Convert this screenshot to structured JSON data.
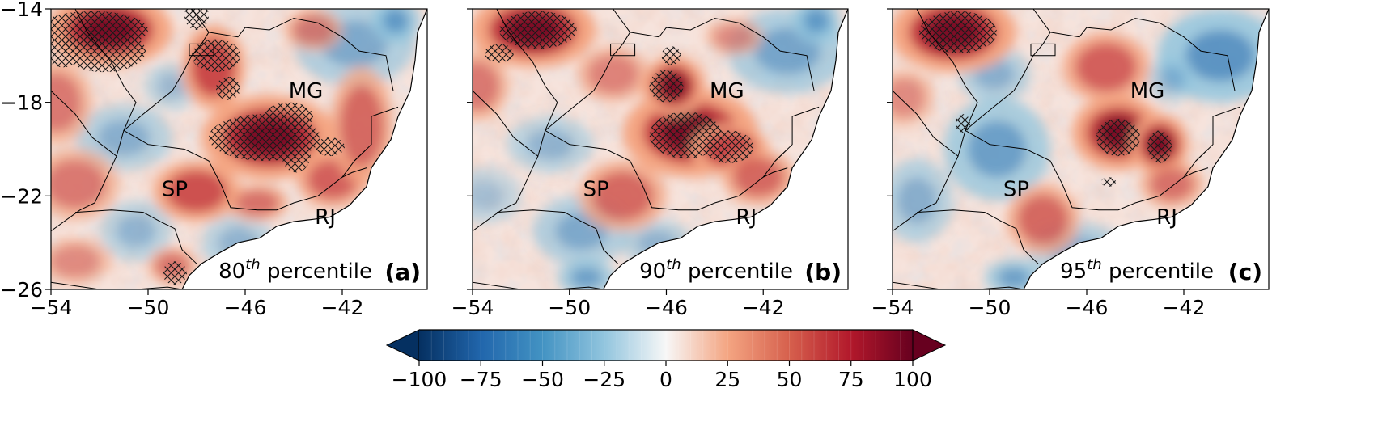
{
  "figure": {
    "panels": [
      {
        "id": "a",
        "panel_label": "(a)",
        "percentile_number": "80",
        "percentile_suffix": "th",
        "percentile_word": " percentile",
        "hatch": [
          [
            -52.3,
            -14.9,
            2.3,
            0.8
          ],
          [
            -51.8,
            -15.8,
            1.7,
            0.9
          ],
          [
            -53.5,
            -15.9,
            0.7,
            0.6
          ],
          [
            -48.0,
            -14.3,
            0.5,
            0.6
          ],
          [
            -47.2,
            -16.0,
            1.0,
            0.7
          ],
          [
            -46.7,
            -17.4,
            0.5,
            0.5
          ],
          [
            -45.2,
            -19.5,
            2.3,
            1.0
          ],
          [
            -44.2,
            -18.6,
            1.0,
            0.6
          ],
          [
            -43.9,
            -20.2,
            0.6,
            0.8
          ],
          [
            -42.5,
            -19.9,
            0.6,
            0.4
          ],
          [
            -48.9,
            -25.3,
            0.5,
            0.5
          ]
        ],
        "hot": [
          [
            -51.6,
            -14.9,
            2.6,
            1.6,
            0.95
          ],
          [
            -45.0,
            -19.5,
            2.8,
            1.8,
            0.95
          ],
          [
            -47.3,
            -16.5,
            1.3,
            1.8,
            0.75
          ],
          [
            -48.0,
            -21.8,
            1.8,
            1.3,
            0.7
          ],
          [
            -42.4,
            -21.3,
            1.5,
            1.2,
            0.6
          ],
          [
            -41.2,
            -19.0,
            1.3,
            2.5,
            0.55
          ],
          [
            -53.8,
            -18.0,
            1.5,
            1.8,
            0.45
          ],
          [
            -53.0,
            -21.5,
            1.8,
            1.5,
            0.45
          ],
          [
            -45.5,
            -22.3,
            1.3,
            0.8,
            0.5
          ],
          [
            -49.0,
            -25.0,
            1.0,
            0.8,
            0.5
          ],
          [
            -53.0,
            -24.8,
            1.5,
            1.0,
            0.35
          ],
          [
            -43.2,
            -14.9,
            1.2,
            0.9,
            0.45
          ]
        ],
        "cold": [
          [
            -41.5,
            -15.5,
            2.5,
            1.8,
            0.45
          ],
          [
            -39.8,
            -14.5,
            1.0,
            1.0,
            0.6
          ],
          [
            -51.0,
            -19.5,
            2.0,
            1.4,
            0.4
          ],
          [
            -50.5,
            -23.5,
            1.5,
            1.3,
            0.35
          ],
          [
            -46.3,
            -24.0,
            1.5,
            1.2,
            0.35
          ],
          [
            -49.0,
            -17.3,
            1.2,
            1.0,
            0.3
          ]
        ]
      },
      {
        "id": "b",
        "panel_label": "(b)",
        "percentile_number": "90",
        "percentile_suffix": "th",
        "percentile_word": " percentile",
        "hatch": [
          [
            -51.3,
            -14.9,
            1.6,
            0.8
          ],
          [
            -52.9,
            -15.9,
            0.6,
            0.4
          ],
          [
            -45.2,
            -19.4,
            1.5,
            1.0
          ],
          [
            -46.0,
            -17.3,
            0.7,
            0.7
          ],
          [
            -43.4,
            -19.9,
            1.0,
            0.7
          ],
          [
            -45.8,
            -16.0,
            0.4,
            0.4
          ]
        ],
        "hot": [
          [
            -51.5,
            -14.9,
            2.6,
            1.6,
            0.95
          ],
          [
            -45.0,
            -19.3,
            2.8,
            1.9,
            0.9
          ],
          [
            -45.7,
            -17.3,
            1.3,
            1.3,
            0.85
          ],
          [
            -43.4,
            -20.0,
            1.6,
            1.1,
            0.8
          ],
          [
            -47.8,
            -22.0,
            1.8,
            1.5,
            0.55
          ],
          [
            -42.2,
            -21.2,
            1.5,
            1.2,
            0.55
          ],
          [
            -53.8,
            -17.3,
            1.3,
            1.5,
            0.45
          ],
          [
            -48.2,
            -16.8,
            1.5,
            1.2,
            0.4
          ],
          [
            -43.2,
            -15.2,
            1.2,
            0.8,
            0.35
          ]
        ],
        "cold": [
          [
            -41.0,
            -15.8,
            2.5,
            1.8,
            0.5
          ],
          [
            -39.8,
            -14.5,
            1.0,
            1.0,
            0.6
          ],
          [
            -49.5,
            -23.5,
            2.0,
            1.5,
            0.45
          ],
          [
            -50.8,
            -19.8,
            1.8,
            1.2,
            0.35
          ],
          [
            -49.3,
            -25.5,
            1.2,
            0.8,
            0.55
          ],
          [
            -46.4,
            -24.0,
            1.5,
            1.0,
            0.35
          ],
          [
            -53.5,
            -22.0,
            1.5,
            1.2,
            0.25
          ]
        ]
      },
      {
        "id": "c",
        "panel_label": "(c)",
        "percentile_number": "95",
        "percentile_suffix": "th",
        "percentile_word": " percentile",
        "hatch": [
          [
            -51.3,
            -15.0,
            1.6,
            0.9
          ],
          [
            -44.7,
            -19.5,
            0.9,
            0.8
          ],
          [
            -43.0,
            -19.9,
            0.5,
            0.7
          ],
          [
            -51.1,
            -18.9,
            0.3,
            0.4
          ],
          [
            -45.1,
            -21.4,
            0.3,
            0.2
          ]
        ],
        "hot": [
          [
            -51.5,
            -15.0,
            2.6,
            1.7,
            0.95
          ],
          [
            -44.7,
            -19.3,
            1.9,
            1.6,
            0.85
          ],
          [
            -43.0,
            -19.8,
            1.2,
            1.3,
            0.9
          ],
          [
            -45.2,
            -16.5,
            1.8,
            1.5,
            0.6
          ],
          [
            -47.8,
            -23.0,
            1.5,
            1.5,
            0.55
          ],
          [
            -42.5,
            -21.5,
            1.3,
            1.0,
            0.5
          ],
          [
            -53.5,
            -17.8,
            1.2,
            1.2,
            0.35
          ]
        ],
        "cold": [
          [
            -40.5,
            -16.0,
            2.6,
            2.0,
            0.65
          ],
          [
            -49.7,
            -20.0,
            2.2,
            2.2,
            0.55
          ],
          [
            -53.0,
            -22.2,
            1.5,
            1.8,
            0.4
          ],
          [
            -49.8,
            -16.8,
            1.5,
            1.2,
            0.4
          ],
          [
            -46.5,
            -24.3,
            2.0,
            1.2,
            0.4
          ],
          [
            -49.0,
            -25.5,
            1.2,
            0.8,
            0.55
          ],
          [
            -42.5,
            -17.0,
            1.0,
            1.0,
            0.35
          ]
        ]
      }
    ],
    "state_labels": [
      {
        "text": "MG",
        "lon": -43.5,
        "lat": -17.8
      },
      {
        "text": "SP",
        "lon": -48.9,
        "lat": -22.0
      },
      {
        "text": "RJ",
        "lon": -42.7,
        "lat": -23.2
      }
    ],
    "extent": {
      "lon": [
        -54,
        -38.5
      ],
      "lat": [
        -26,
        -14
      ]
    },
    "x_ticks": [
      {
        "value": -54,
        "label": "−54"
      },
      {
        "value": -50,
        "label": "−50"
      },
      {
        "value": -46,
        "label": "−46"
      },
      {
        "value": -42,
        "label": "−42"
      }
    ],
    "y_ticks": [
      {
        "value": -14,
        "label": "−14"
      },
      {
        "value": -18,
        "label": "−18"
      },
      {
        "value": -22,
        "label": "−22"
      },
      {
        "value": -26,
        "label": "−26"
      }
    ],
    "colorbar": {
      "colormap": "RdBu_r",
      "vmin": -100,
      "vmax": 100,
      "levels": 40,
      "extend": "both",
      "ticks": [
        {
          "value": -100,
          "label": "−100"
        },
        {
          "value": -75,
          "label": "−75"
        },
        {
          "value": -50,
          "label": "−50"
        },
        {
          "value": -25,
          "label": "−25"
        },
        {
          "value": 0,
          "label": "0"
        },
        {
          "value": 25,
          "label": "25"
        },
        {
          "value": 50,
          "label": "50"
        },
        {
          "value": 75,
          "label": "75"
        },
        {
          "value": 100,
          "label": "100"
        }
      ]
    },
    "colors": {
      "strong_red": "#67001f",
      "red": "#b2182b",
      "light_red": "#f4a582",
      "neutral": "#f7f7f7",
      "light_blue": "#92c5de",
      "blue": "#2166ac",
      "strong_blue": "#053061"
    }
  }
}
